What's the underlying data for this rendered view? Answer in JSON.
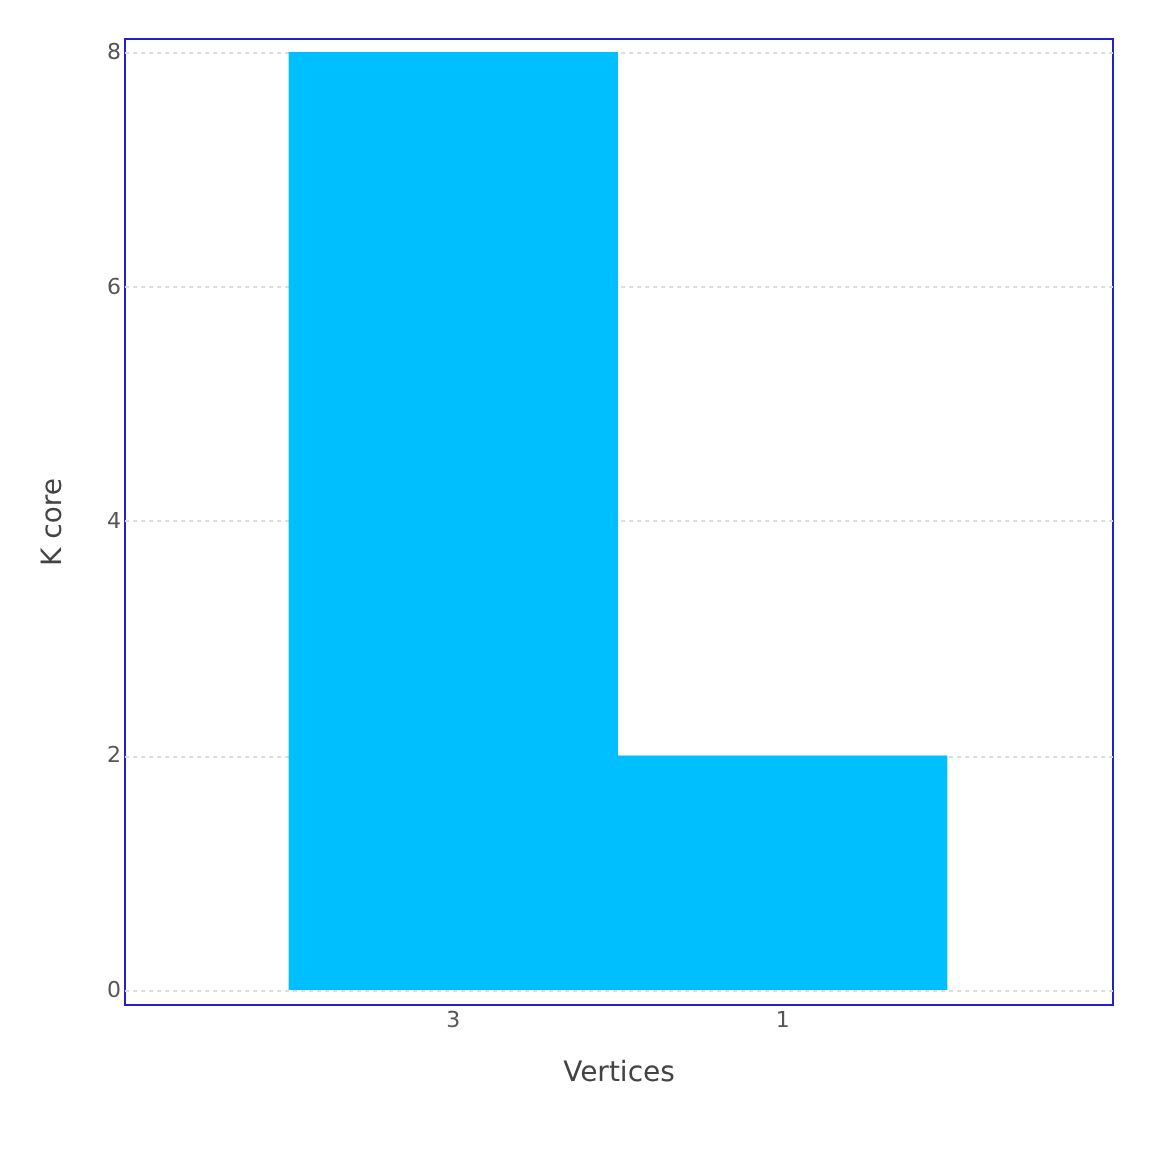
{
  "chart_data": {
    "type": "bar",
    "xlabel": "Vertices",
    "ylabel": "K core",
    "categories": [
      "3",
      "1"
    ],
    "values": [
      8,
      2
    ],
    "color": "#00bfff",
    "ylim": [
      -0.12,
      8.12
    ],
    "yticks": [
      0,
      2,
      4,
      6,
      8
    ],
    "grid": "y"
  }
}
